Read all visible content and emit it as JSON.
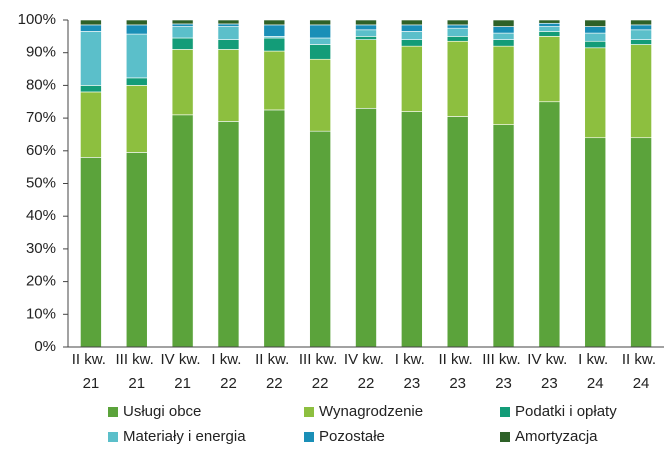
{
  "chart_data": {
    "type": "stacked_bar",
    "categories": [
      "II kw. 21",
      "III kw. 21",
      "IV kw. 21",
      "I kw. 22",
      "II kw. 22",
      "III kw. 22",
      "IV kw. 22",
      "I kw. 23",
      "II kw. 23",
      "III kw. 23",
      "IV kw. 23",
      "I kw. 24",
      "II kw. 24"
    ],
    "series": [
      {
        "name": "Usługi obce",
        "color": "#5ba33b",
        "values": [
          58,
          59.5,
          71,
          69,
          72.5,
          66,
          73,
          72,
          70.5,
          68,
          75,
          64,
          64
        ]
      },
      {
        "name": "Wynagrodzenie",
        "color": "#8dbf3f",
        "values": [
          20,
          20.5,
          20,
          22,
          18,
          22,
          21,
          20,
          23,
          24,
          20,
          27.5,
          28.5
        ]
      },
      {
        "name": "Podatki i opłaty",
        "color": "#139c78",
        "values": [
          2,
          2.3,
          3.5,
          3,
          4,
          4.5,
          1,
          2,
          1.5,
          2,
          1.5,
          2,
          1.5
        ]
      },
      {
        "name": "Materiały i energia",
        "color": "#5bbfca",
        "values": [
          16.5,
          13.4,
          3.5,
          4,
          0.5,
          2,
          2,
          2.5,
          2.5,
          2,
          1.5,
          2.5,
          3
        ]
      },
      {
        "name": "Pozostałe",
        "color": "#1a8fb7",
        "values": [
          2,
          2.8,
          0.8,
          0.8,
          3.5,
          4,
          1.5,
          2,
          1,
          2,
          1,
          2,
          1.5
        ]
      },
      {
        "name": "Amortyzacja",
        "color": "#2e6128",
        "values": [
          1.5,
          1.5,
          1.2,
          1.2,
          1.5,
          1.5,
          1.5,
          1.5,
          1.5,
          2,
          1,
          2,
          1.5
        ]
      }
    ],
    "ylim": [
      0,
      100
    ],
    "yticks": [
      {
        "value": 0,
        "label": "0%"
      },
      {
        "value": 10,
        "label": "10%"
      },
      {
        "value": 20,
        "label": "20%"
      },
      {
        "value": 30,
        "label": "30%"
      },
      {
        "value": 40,
        "label": "40%"
      },
      {
        "value": 50,
        "label": "50%"
      },
      {
        "value": 60,
        "label": "60%"
      },
      {
        "value": 70,
        "label": "70%"
      },
      {
        "value": 80,
        "label": "80%"
      },
      {
        "value": 90,
        "label": "90%"
      },
      {
        "value": 100,
        "label": "100%"
      }
    ],
    "grid": false
  }
}
